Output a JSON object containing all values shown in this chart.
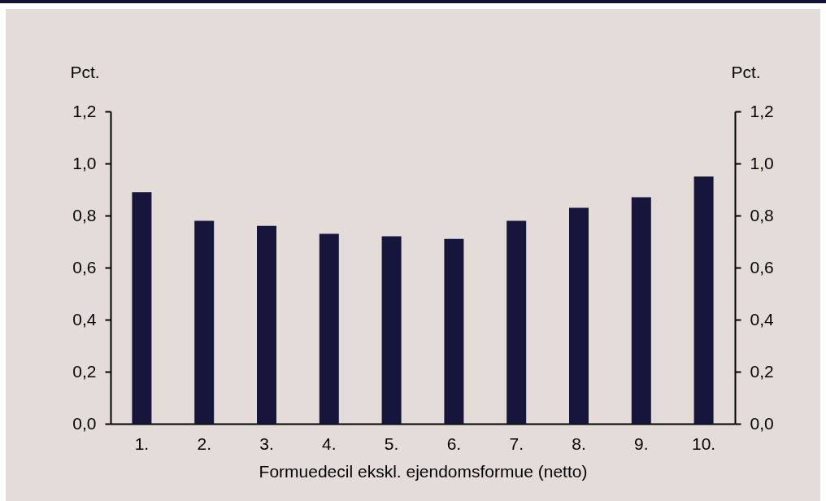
{
  "chart_data": {
    "type": "bar",
    "xlabel": "Formuedecil ekskl. ejendomsformue (netto)",
    "ylabel": "Pct.",
    "y2label": "Pct.",
    "categories": [
      "1.",
      "2.",
      "3.",
      "4.",
      "5.",
      "6.",
      "7.",
      "8.",
      "9.",
      "10."
    ],
    "values": [
      0.89,
      0.78,
      0.76,
      0.73,
      0.72,
      0.71,
      0.78,
      0.83,
      0.87,
      0.95
    ],
    "color": "#16163c",
    "ylim": [
      0,
      1.2
    ],
    "yticks": [
      {
        "value": 0,
        "label": "0,0"
      },
      {
        "value": 0.2,
        "label": "0,2"
      },
      {
        "value": 0.4,
        "label": "0,4"
      },
      {
        "value": 0.6,
        "label": "0,6"
      },
      {
        "value": 0.8,
        "label": "0,8"
      },
      {
        "value": 1,
        "label": "1,0"
      },
      {
        "value": 1.2,
        "label": "1,2"
      }
    ],
    "y2lim": [
      0,
      1.2
    ],
    "y2ticks": [
      {
        "value": 0,
        "label": "0,0"
      },
      {
        "value": 0.2,
        "label": "0,2"
      },
      {
        "value": 0.4,
        "label": "0,4"
      },
      {
        "value": 0.6,
        "label": "0,6"
      },
      {
        "value": 0.8,
        "label": "0,8"
      },
      {
        "value": 1,
        "label": "1,0"
      },
      {
        "value": 1.2,
        "label": "1,2"
      }
    ]
  }
}
